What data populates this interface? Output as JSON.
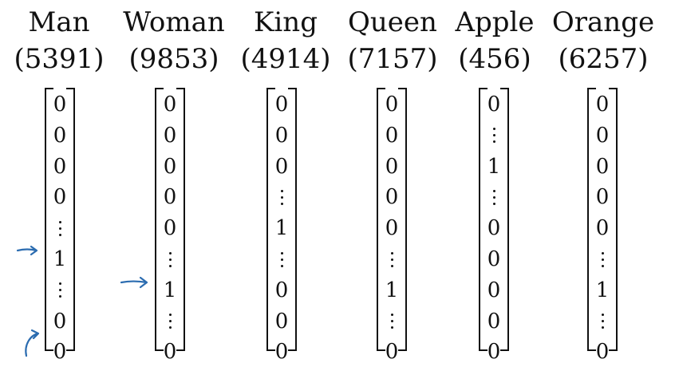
{
  "words": [
    {
      "name": "Man",
      "index": "(5391)",
      "entries": [
        "0",
        "0",
        "0",
        "0",
        "⋮",
        "1",
        "⋮",
        "0",
        "0"
      ]
    },
    {
      "name": "Woman",
      "index": "(9853)",
      "entries": [
        "0",
        "0",
        "0",
        "0",
        "0",
        "⋮",
        "1",
        "⋮",
        "0"
      ]
    },
    {
      "name": "King",
      "index": "(4914)",
      "entries": [
        "0",
        "0",
        "0",
        "⋮",
        "1",
        "⋮",
        "0",
        "0",
        "0"
      ]
    },
    {
      "name": "Queen",
      "index": "(7157)",
      "entries": [
        "0",
        "0",
        "0",
        "0",
        "0",
        "⋮",
        "1",
        "⋮",
        "0"
      ]
    },
    {
      "name": "Apple",
      "index": "(456)",
      "entries": [
        "0",
        "⋮",
        "1",
        "⋮",
        "0",
        "0",
        "0",
        "0",
        "0"
      ]
    },
    {
      "name": "Orange",
      "index": "(6257)",
      "entries": [
        "0",
        "0",
        "0",
        "0",
        "0",
        "⋮",
        "1",
        "⋮",
        "0"
      ]
    }
  ],
  "annotation_color": "#2b6cb0",
  "arrow_icon": "hand-drawn-arrow-icon"
}
